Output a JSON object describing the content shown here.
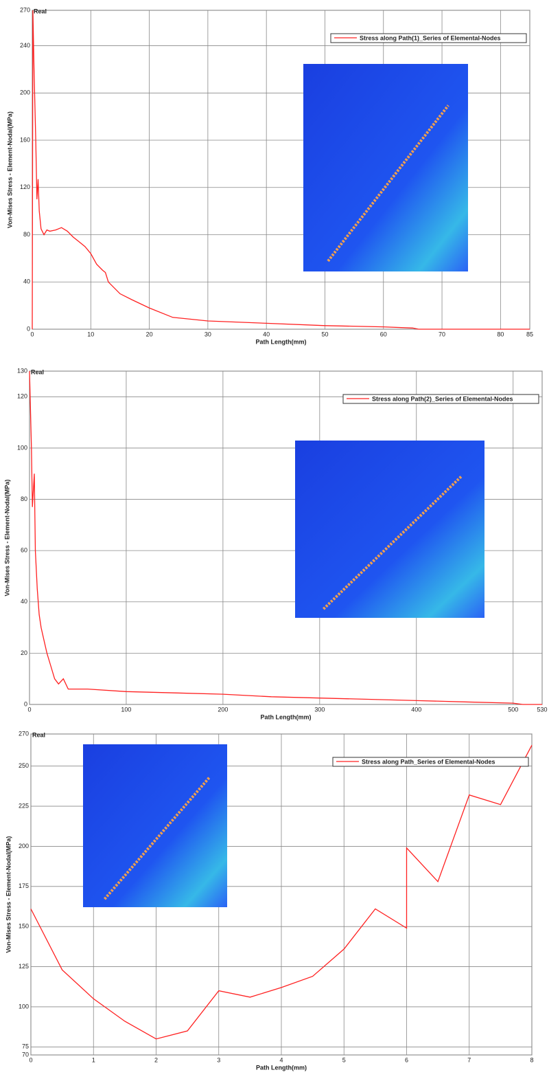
{
  "chart_data": [
    {
      "type": "line",
      "corner_label": "Real",
      "xlabel": "Path Length(mm)",
      "ylabel": "Von-Mises Stress - Element-Nodal(MPa)",
      "xlim": [
        0,
        85
      ],
      "xticks": [
        0,
        10,
        20,
        30,
        40,
        50,
        60,
        70,
        80,
        85
      ],
      "ylim": [
        0,
        270
      ],
      "yticks": [
        0,
        40,
        80,
        120,
        160,
        200,
        240,
        270
      ],
      "grid": true,
      "legend": "upper right",
      "series": [
        {
          "name": "Stress along Path(1)_Series of Elemental-Nodes",
          "color": "#ff2020",
          "x": [
            0,
            0.1,
            0.3,
            0.6,
            0.8,
            1,
            1.2,
            1.5,
            2,
            2.5,
            3,
            4,
            5,
            6,
            7,
            8,
            9,
            10,
            11,
            12,
            12.5,
            13,
            15,
            17,
            20,
            24,
            30,
            40,
            50,
            60,
            65,
            66,
            85
          ],
          "values": [
            0,
            270,
            220,
            160,
            110,
            127,
            100,
            85,
            80,
            84,
            83,
            84,
            86,
            83,
            78,
            74,
            70,
            64,
            55,
            50,
            48,
            40,
            30,
            25,
            18,
            10,
            7,
            5,
            3,
            2,
            1,
            0,
            0
          ]
        }
      ]
    },
    {
      "type": "line",
      "corner_label": "Real",
      "xlabel": "Path Length(mm)",
      "ylabel": "Von-Mises Stress - Element-Nodal(MPa)",
      "xlim": [
        0,
        530
      ],
      "xticks": [
        0,
        100,
        200,
        300,
        400,
        500,
        530
      ],
      "ylim": [
        0,
        130
      ],
      "yticks": [
        0,
        20,
        40,
        60,
        80,
        100,
        120,
        130
      ],
      "grid": true,
      "legend": "upper right",
      "series": [
        {
          "name": "Stress along Path(2)_Series of Elemental-Nodes",
          "color": "#ff2020",
          "x": [
            0,
            2,
            3,
            5,
            6,
            8,
            10,
            12,
            15,
            18,
            22,
            26,
            30,
            35,
            40,
            60,
            100,
            150,
            200,
            250,
            300,
            350,
            400,
            450,
            500,
            510,
            530
          ],
          "values": [
            130,
            100,
            77,
            90,
            60,
            45,
            35,
            30,
            25,
            20,
            15,
            10,
            8,
            10,
            6,
            6,
            5,
            4.5,
            4,
            3,
            2.5,
            2,
            1.5,
            1,
            0.5,
            0,
            0
          ]
        }
      ]
    },
    {
      "type": "line",
      "corner_label": "Real",
      "xlabel": "Path Length(mm)",
      "ylabel": "Von-Mises Stress - Element-Nodal(MPa)",
      "xlim": [
        0,
        8
      ],
      "xticks": [
        0,
        1,
        2,
        3,
        4,
        5,
        6,
        7,
        8
      ],
      "ylim": [
        70,
        270
      ],
      "yticks": [
        70,
        75,
        100,
        125,
        150,
        175,
        200,
        225,
        250,
        270
      ],
      "grid": true,
      "legend": "upper right",
      "series": [
        {
          "name": "Stress along Path_Series of Elemental-Nodes",
          "color": "#ff2020",
          "x": [
            0,
            0.5,
            1,
            1.5,
            2,
            2.5,
            3,
            3.5,
            4,
            4.5,
            5,
            5.5,
            6,
            6,
            6.5,
            7,
            7.5,
            8
          ],
          "values": [
            161,
            123,
            105,
            91,
            80,
            85,
            110,
            106,
            112,
            119,
            136,
            161,
            149,
            199,
            178,
            232,
            226,
            263
          ]
        }
      ]
    }
  ]
}
